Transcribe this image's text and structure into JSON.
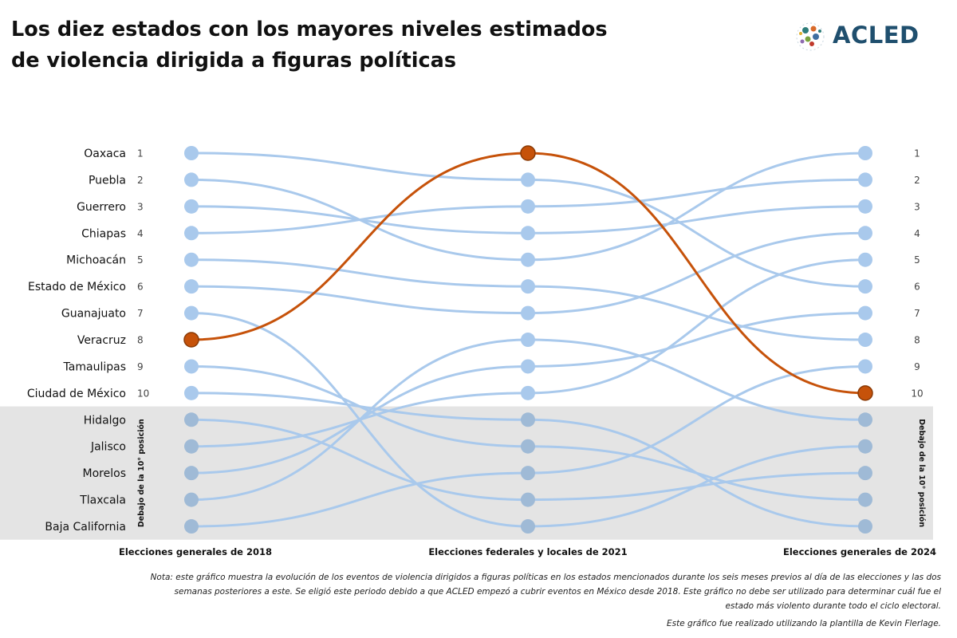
{
  "title_lines": [
    "Los diez estados con los mayores niveles estimados",
    "de violencia dirigida a figuras políticas"
  ],
  "logo_text": "ACLED",
  "chart_data": {
    "type": "bump",
    "columns": [
      "Elecciones generales de 2018",
      "Elecciones federales y locales de 2021",
      "Elecciones generales de 2024"
    ],
    "rank_labels": [
      "1",
      "2",
      "3",
      "4",
      "5",
      "6",
      "7",
      "8",
      "9",
      "10"
    ],
    "below_label": "Debajo de la 10° posición",
    "highlight_color": "#c6520a",
    "line_color": "#a9c9ec",
    "dot_color": "#a9c9ec",
    "below_band_color": "#e4e4e4",
    "series": [
      {
        "name": "Oaxaca",
        "positions": [
          1,
          2,
          6
        ]
      },
      {
        "name": "Puebla",
        "positions": [
          2,
          5,
          1
        ]
      },
      {
        "name": "Guerrero",
        "positions": [
          3,
          4,
          3
        ]
      },
      {
        "name": "Chiapas",
        "positions": [
          4,
          3,
          2
        ]
      },
      {
        "name": "Michoacán",
        "positions": [
          5,
          6,
          8
        ]
      },
      {
        "name": "Estado de México",
        "positions": [
          6,
          7,
          4
        ]
      },
      {
        "name": "Guanajuato",
        "positions": [
          7,
          15,
          12
        ]
      },
      {
        "name": "Veracruz",
        "positions": [
          8,
          1,
          10
        ],
        "highlight": true
      },
      {
        "name": "Tamaulipas",
        "positions": [
          9,
          12,
          14
        ]
      },
      {
        "name": "Ciudad de México",
        "positions": [
          10,
          11,
          15
        ]
      },
      {
        "name": "Hidalgo",
        "positions": [
          11,
          14,
          13
        ]
      },
      {
        "name": "Jalisco",
        "positions": [
          12,
          10,
          5
        ]
      },
      {
        "name": "Morelos",
        "positions": [
          13,
          9,
          7
        ]
      },
      {
        "name": "Tlaxcala",
        "positions": [
          14,
          8,
          11
        ]
      },
      {
        "name": "Baja California",
        "positions": [
          15,
          13,
          9
        ]
      }
    ]
  },
  "note": "Nota: este gráfico muestra la evolución de los eventos de violencia dirigidos a figuras políticas en los estados mencionados durante los seis meses previos al día de las elecciones y las dos semanas posteriores a este. Se eligió este periodo debido a que ACLED empezó a cubrir eventos en México desde 2018. Este gráfico no debe ser utilizado para determinar cuál fue el estado más violento durante todo el ciclo electoral.",
  "credit": "Este gráfico fue realizado utilizando la plantilla de Kevin Flerlage."
}
